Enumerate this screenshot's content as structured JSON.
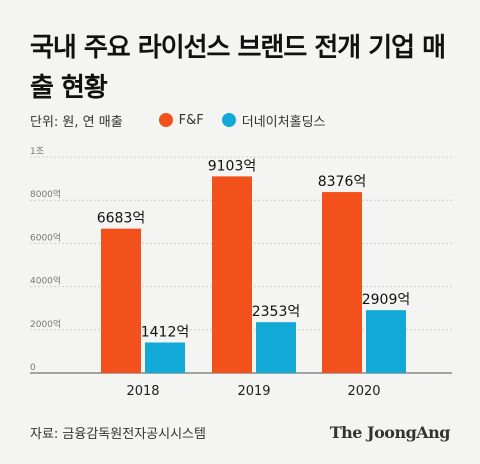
{
  "title": "국내 주요 라이선스 브랜드 전개 기업 매출 현황",
  "legend": {
    "unit": "단위: 원, 연 매출",
    "items": [
      {
        "name": "F&F",
        "color": "#f2511b"
      },
      {
        "name": "더네이처홀딩스",
        "color": "#12a9d6"
      }
    ]
  },
  "chart_data": {
    "type": "bar",
    "categories": [
      "2018",
      "2019",
      "2020"
    ],
    "series": [
      {
        "name": "F&F",
        "values": [
          6683,
          9103,
          8376
        ],
        "labels": [
          "6683억",
          "9103억",
          "8376억"
        ],
        "color": "#f2511b"
      },
      {
        "name": "더네이처홀딩스",
        "values": [
          1412,
          2353,
          2909
        ],
        "labels": [
          "1412억",
          "2353억",
          "2909억"
        ],
        "color": "#12a9d6"
      }
    ],
    "y_ticks": [
      {
        "value": 0,
        "label": "0"
      },
      {
        "value": 2000,
        "label": "2000억"
      },
      {
        "value": 4000,
        "label": "4000억"
      },
      {
        "value": 6000,
        "label": "6000억"
      },
      {
        "value": 8000,
        "label": "8000억"
      },
      {
        "value": 10000,
        "label": "1조"
      }
    ],
    "ylim": [
      0,
      10000
    ],
    "grid": true
  },
  "footer": {
    "source": "자료: 금융감독원전자공시시스템",
    "brand": "The JoongAng"
  }
}
